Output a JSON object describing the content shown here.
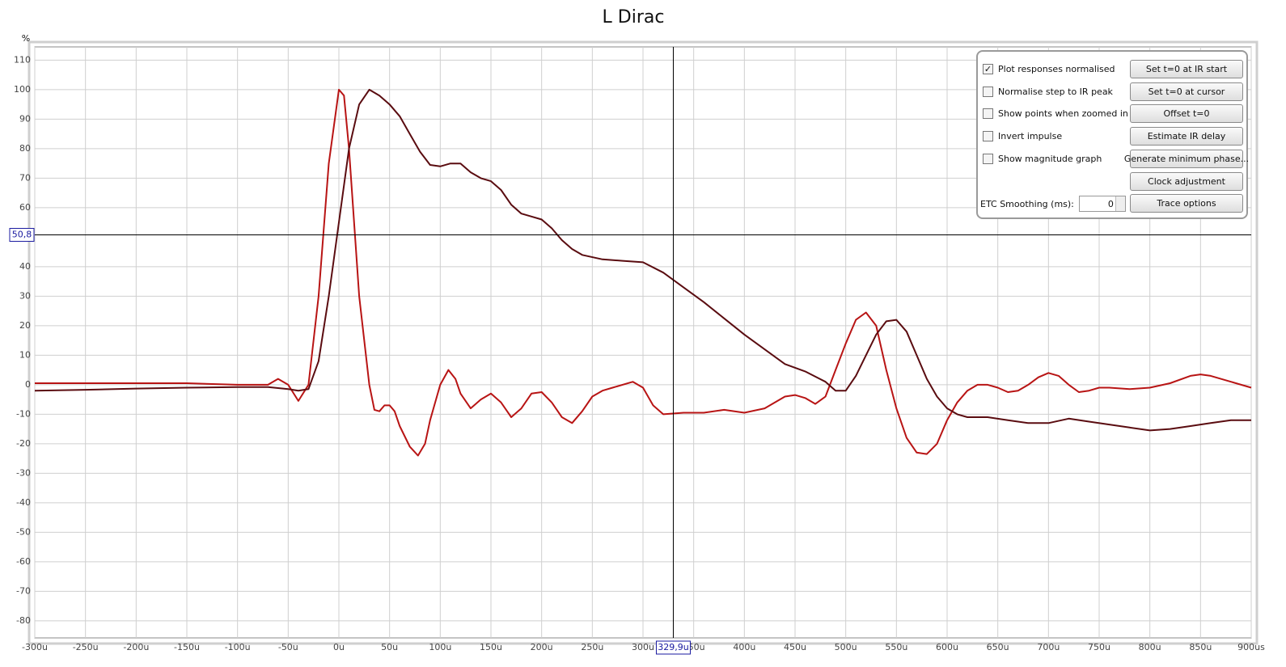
{
  "chart_data": {
    "type": "line",
    "title": "L Dirac",
    "y_label": "%",
    "xlim": [
      -300,
      900
    ],
    "ylim": [
      -85.8,
      114.5
    ],
    "grid": true,
    "xticks": [
      {
        "value": -300,
        "label": "-300u"
      },
      {
        "value": -250,
        "label": "-250u"
      },
      {
        "value": -200,
        "label": "-200u"
      },
      {
        "value": -150,
        "label": "-150u"
      },
      {
        "value": -100,
        "label": "-100u"
      },
      {
        "value": -50,
        "label": "-50u"
      },
      {
        "value": 0,
        "label": "0u"
      },
      {
        "value": 50,
        "label": "50u"
      },
      {
        "value": 100,
        "label": "100u"
      },
      {
        "value": 150,
        "label": "150u"
      },
      {
        "value": 200,
        "label": "200u"
      },
      {
        "value": 250,
        "label": "250u"
      },
      {
        "value": 300,
        "label": "300u"
      },
      {
        "value": 350,
        "label": "350u"
      },
      {
        "value": 400,
        "label": "400u"
      },
      {
        "value": 450,
        "label": "450u"
      },
      {
        "value": 500,
        "label": "500u"
      },
      {
        "value": 550,
        "label": "550u"
      },
      {
        "value": 600,
        "label": "600u"
      },
      {
        "value": 650,
        "label": "650u"
      },
      {
        "value": 700,
        "label": "700u"
      },
      {
        "value": 750,
        "label": "750u"
      },
      {
        "value": 800,
        "label": "800u"
      },
      {
        "value": 850,
        "label": "850u"
      },
      {
        "value": 900,
        "label": "900us"
      }
    ],
    "yticks": [
      110,
      100,
      90,
      80,
      70,
      60,
      40,
      30,
      20,
      10,
      0,
      -10,
      -20,
      -30,
      -40,
      -50,
      -60,
      -70,
      -80
    ],
    "cursor": {
      "x": {
        "value": 329.9,
        "label": "329,9u"
      },
      "y": {
        "value": 50.8,
        "label": "50,8"
      }
    },
    "series": [
      {
        "color": "#b81414",
        "x": [
          -300,
          -250,
          -200,
          -150,
          -100,
          -70,
          -60,
          -50,
          -40,
          -30,
          -20,
          -10,
          0,
          5,
          10,
          20,
          30,
          35,
          40,
          45,
          50,
          55,
          60,
          70,
          78,
          85,
          90,
          100,
          108,
          115,
          120,
          130,
          140,
          150,
          160,
          170,
          180,
          190,
          200,
          210,
          220,
          230,
          240,
          250,
          260,
          270,
          290,
          300,
          310,
          320,
          340,
          360,
          380,
          400,
          420,
          440,
          450,
          460,
          470,
          480,
          490,
          500,
          510,
          520,
          530,
          540,
          550,
          560,
          570,
          580,
          590,
          600,
          610,
          620,
          630,
          640,
          650,
          660,
          670,
          680,
          690,
          700,
          710,
          720,
          730,
          740,
          750,
          760,
          780,
          800,
          820,
          840,
          850,
          860,
          880,
          900
        ],
        "values": [
          0.5,
          0.5,
          0.5,
          0.5,
          0,
          0,
          2,
          0,
          -5.5,
          0,
          30,
          75,
          100,
          98,
          80,
          30,
          0,
          -8.5,
          -9,
          -7,
          -7,
          -9,
          -14,
          -21,
          -24,
          -20,
          -12,
          0,
          5,
          2,
          -3,
          -8,
          -5,
          -3,
          -6,
          -11,
          -8,
          -3,
          -2.5,
          -6,
          -11,
          -13,
          -9,
          -4,
          -2,
          -1,
          1,
          -1,
          -7,
          -10,
          -9.5,
          -9.5,
          -8.5,
          -9.5,
          -8,
          -4,
          -3.5,
          -4.5,
          -6.5,
          -4,
          5,
          14,
          22,
          24.5,
          20,
          5,
          -8,
          -18,
          -23,
          -23.5,
          -20,
          -12,
          -6,
          -2,
          0,
          0,
          -1,
          -2.5,
          -2,
          0,
          2.5,
          4,
          3,
          0,
          -2.5,
          -2,
          -1,
          -1,
          -1.5,
          -1,
          0.5,
          3,
          3.5,
          3,
          1,
          -1
        ]
      },
      {
        "color": "#5a0c10",
        "x": [
          -300,
          -250,
          -200,
          -150,
          -100,
          -70,
          -50,
          -40,
          -30,
          -20,
          -10,
          0,
          10,
          20,
          30,
          40,
          50,
          60,
          70,
          80,
          90,
          100,
          110,
          120,
          130,
          140,
          150,
          160,
          170,
          180,
          190,
          200,
          210,
          220,
          230,
          240,
          260,
          280,
          300,
          320,
          340,
          360,
          380,
          400,
          420,
          440,
          460,
          480,
          490,
          500,
          510,
          520,
          530,
          540,
          550,
          560,
          570,
          580,
          590,
          600,
          610,
          620,
          640,
          660,
          680,
          700,
          720,
          740,
          760,
          780,
          800,
          820,
          840,
          860,
          880,
          900
        ],
        "values": [
          -2,
          -1.7,
          -1.3,
          -1,
          -0.8,
          -0.8,
          -1.5,
          -2,
          -1.5,
          8,
          30,
          55,
          80,
          95,
          100,
          98,
          95,
          91,
          85,
          79,
          74.5,
          74,
          75,
          75,
          72,
          70,
          69,
          66,
          61,
          58,
          57,
          56,
          53,
          49,
          46,
          44,
          42.5,
          42,
          41.5,
          38,
          33,
          28,
          22.5,
          17,
          12,
          7,
          4.5,
          1,
          -2,
          -2,
          3,
          10,
          17,
          21.5,
          22,
          18,
          10,
          2,
          -4,
          -8,
          -10,
          -11,
          -11,
          -12,
          -13,
          -13,
          -11.5,
          -12.5,
          -13.5,
          -14.5,
          -15.5,
          -15,
          -14,
          -13,
          -12,
          -12
        ]
      }
    ]
  },
  "controls": {
    "checkboxes": [
      {
        "label": "Plot responses normalised",
        "checked": true
      },
      {
        "label": "Normalise step to IR peak",
        "checked": false
      },
      {
        "label": "Show points when zoomed in",
        "checked": false
      },
      {
        "label": "Invert impulse",
        "checked": false
      },
      {
        "label": "Show magnitude graph",
        "checked": false
      }
    ],
    "buttons": [
      "Set t=0 at IR start",
      "Set t=0 at cursor",
      "Offset t=0",
      "Estimate IR delay",
      "Generate minimum phase...",
      "Clock adjustment",
      "Trace options"
    ],
    "etc_smoothing": {
      "label": "ETC Smoothing (ms):",
      "value": "0"
    }
  }
}
